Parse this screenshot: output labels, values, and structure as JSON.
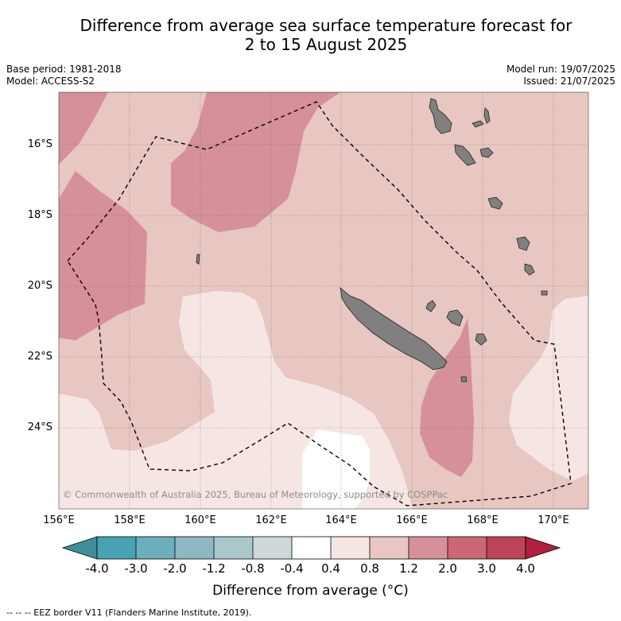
{
  "title_line1": "Difference from average sea surface temperature forecast for",
  "title_line2": "2 to 15 August 2025",
  "base_period": "Base period: 1981-2018",
  "model": "Model: ACCESS-S2",
  "model_run": "Model run: 19/07/2025",
  "issued": "Issued: 21/07/2025",
  "lat_labels": [
    "16°S",
    "18°S",
    "20°S",
    "22°S",
    "24°S"
  ],
  "lon_labels": [
    "156°E",
    "158°E",
    "160°E",
    "162°E",
    "164°E",
    "166°E",
    "168°E",
    "170°E"
  ],
  "copyright": "© Commonwealth of Australia 2025, Bureau of Meteorology, supported by COSPPac",
  "colorbar": {
    "ticks": [
      "-4.0",
      "-3.0",
      "-2.0",
      "-1.2",
      "-0.8",
      "-0.4",
      "0.4",
      "0.8",
      "1.2",
      "2.0",
      "3.0",
      "4.0"
    ],
    "colors": [
      "#3f8f9a",
      "#47a3b3",
      "#6caebc",
      "#8db8c3",
      "#a8c8cc",
      "#cdd8da",
      "#ffffff",
      "#f5e6e4",
      "#e8c6c1",
      "#d6909a",
      "#cb6874",
      "#bd4456",
      "#b02040"
    ],
    "label": "Difference from average (°C)"
  },
  "legend": "--  --  -- EEZ border V11 (Flanders Marine Institute, 2019).",
  "colors": {
    "anomaly_0_4_to_0_8": "#f5e6e4",
    "anomaly_0_8_to_1_2": "#e8c6c1",
    "anomaly_1_2_to_2_0": "#d6909a",
    "land": "#808080"
  }
}
